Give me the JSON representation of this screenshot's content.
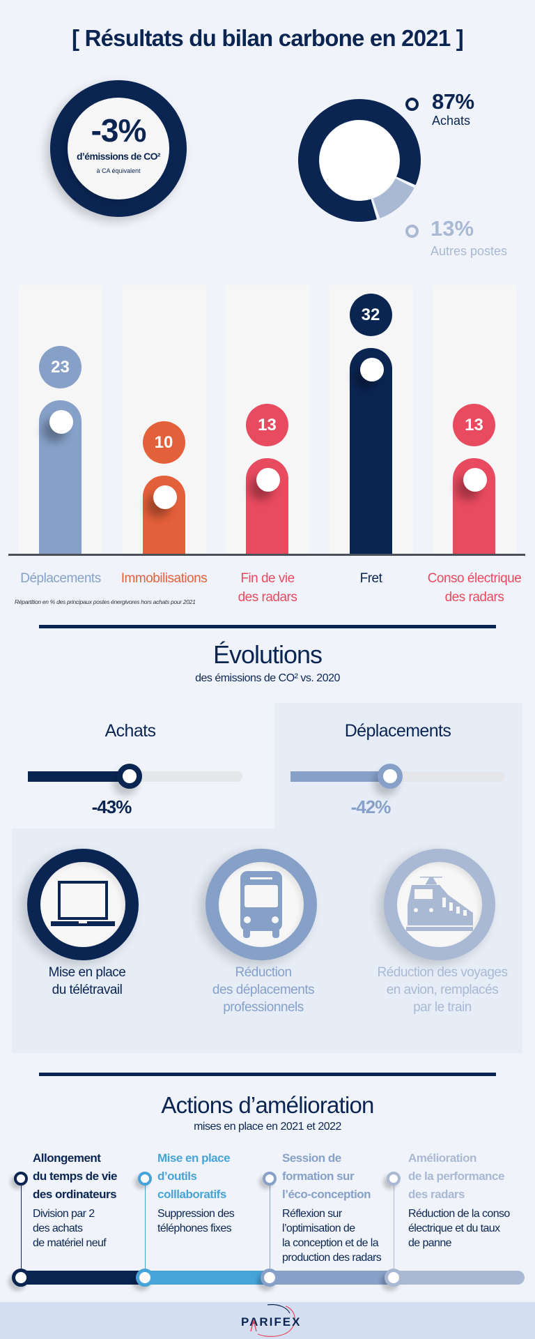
{
  "title": "[ Résultats du bilan carbone en 2021 ]",
  "kpi": {
    "value": "-3%",
    "label": "d’émissions de CO²",
    "sublabel": "à CA équivalent"
  },
  "colors": {
    "navy": "#0b2553",
    "light_blue": "#86a0c8",
    "orange": "#e4603a",
    "red": "#e84a5f",
    "pale_blue": "#a9b8d3",
    "bright_blue": "#47a4d9",
    "background": "#f0f4fa"
  },
  "donut": {
    "legend": [
      {
        "value": "87%",
        "label": "Achats",
        "color": "#0b2553"
      },
      {
        "value": "13%",
        "label": "Autres postes",
        "color": "#a9b8d3"
      }
    ]
  },
  "chart_data": [
    {
      "type": "pie",
      "categories": [
        "Achats",
        "Autres postes"
      ],
      "values": [
        87,
        13
      ]
    },
    {
      "type": "bar",
      "categories": [
        "Déplacements",
        "Immobilisations",
        "Fin de vie des radars",
        "Fret",
        "Conso électrique des radars"
      ],
      "category_lines": [
        [
          "Déplacements"
        ],
        [
          "Immobilisations"
        ],
        [
          "Fin de vie",
          "des radars"
        ],
        [
          "Fret"
        ],
        [
          "Conso électrique",
          "des radars"
        ]
      ],
      "values": [
        23,
        10,
        13,
        32,
        13
      ],
      "value_labels": [
        "23",
        "10",
        "13",
        "32",
        "13"
      ],
      "colors": [
        "#86a0c8",
        "#e4603a",
        "#e84a5f",
        "#0b2553",
        "#e84a5f"
      ],
      "label_colors": [
        "#86a0c8",
        "#e4603a",
        "#e84a5f",
        "#0b2553",
        "#e84a5f"
      ],
      "note": "Répartition en % des principaux postes énergivores hors achats pour 2021"
    }
  ],
  "evolutions": {
    "title": "Évolutions",
    "subtitle": "des émissions de CO² vs. 2020",
    "items": [
      {
        "label": "Achats",
        "value": "-43%",
        "fill_percent": 43,
        "color": "#0b2553"
      },
      {
        "label": "Déplacements",
        "value": "-42%",
        "fill_percent": 42,
        "color": "#86a0c8"
      }
    ],
    "icons": [
      {
        "icon": "laptop-icon",
        "text": "Mise en place\ndu télétravail",
        "color": "#0b2553"
      },
      {
        "icon": "bus-icon",
        "text": "Réduction\ndes déplacements\nprofessionnels",
        "color": "#86a0c8"
      },
      {
        "icon": "train-icon",
        "text": "Réduction des voyages\nen avion, remplacés\npar le train",
        "color": "#a9b8d3"
      }
    ]
  },
  "actions": {
    "title": "Actions d’amélioration",
    "subtitle": "mises en place en 2021 et 2022",
    "items": [
      {
        "title": "Allongement\ndu temps de vie\ndes ordinateurs",
        "desc": "Division par 2\ndes achats\nde matériel neuf",
        "color": "#0b2553"
      },
      {
        "title": "Mise en place\nd’outils\ncolllaboratifs",
        "desc": "Suppression des\ntéléphones fixes",
        "color": "#47a4d9"
      },
      {
        "title": "Session de\nformation sur\nl’éco-conception",
        "desc": "Réflexion sur\nl’optimisation de\nla conception et de la\nproduction des radars",
        "color": "#86a0c8"
      },
      {
        "title": "Amélioration\nde la performance\ndes radars",
        "desc": "Réduction de la conso\nélectrique et du taux\nde panne",
        "color": "#a9b8d3"
      }
    ]
  },
  "footer": {
    "logo": "PARIFEX"
  }
}
